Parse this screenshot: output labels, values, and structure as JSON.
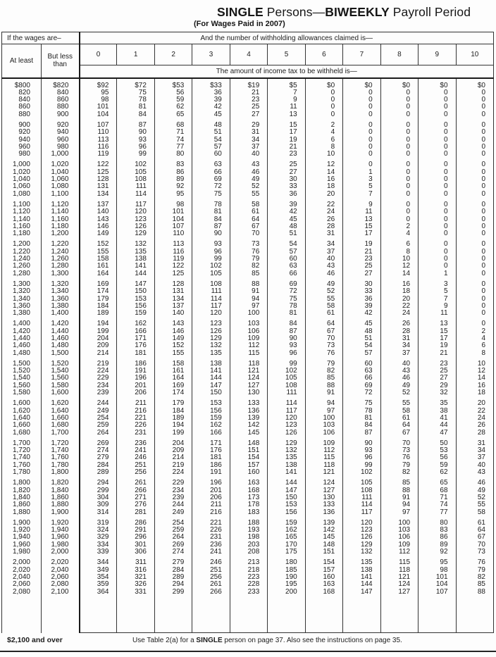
{
  "title": {
    "t1": "SINGLE",
    "t2": " Persons—",
    "t3": "BIWEEKLY",
    "t4": " Payroll Period"
  },
  "subtitle": "(For Wages Paid in 2007)",
  "table": {
    "wages_header": "If the wages are–",
    "allowances_header": "And the number of withholding allowances claimed is—",
    "col_at_least": "At least",
    "col_but_less": "But less than",
    "allowance_cols": [
      "0",
      "1",
      "2",
      "3",
      "4",
      "5",
      "6",
      "7",
      "8",
      "9",
      "10"
    ],
    "amount_header": "The amount of income tax to be withheld is—",
    "rows": [
      [
        "$800",
        "$820",
        "$92",
        "$72",
        "$53",
        "$33",
        "$19",
        "$5",
        "$0",
        "$0",
        "$0",
        "$0",
        "$0"
      ],
      [
        "820",
        "840",
        "95",
        "75",
        "56",
        "36",
        "21",
        "7",
        "0",
        "0",
        "0",
        "0",
        "0"
      ],
      [
        "840",
        "860",
        "98",
        "78",
        "59",
        "39",
        "23",
        "9",
        "0",
        "0",
        "0",
        "0",
        "0"
      ],
      [
        "860",
        "880",
        "101",
        "81",
        "62",
        "42",
        "25",
        "11",
        "0",
        "0",
        "0",
        "0",
        "0"
      ],
      [
        "880",
        "900",
        "104",
        "84",
        "65",
        "45",
        "27",
        "13",
        "0",
        "0",
        "0",
        "0",
        "0"
      ],
      [
        "900",
        "920",
        "107",
        "87",
        "68",
        "48",
        "29",
        "15",
        "2",
        "0",
        "0",
        "0",
        "0"
      ],
      [
        "920",
        "940",
        "110",
        "90",
        "71",
        "51",
        "31",
        "17",
        "4",
        "0",
        "0",
        "0",
        "0"
      ],
      [
        "940",
        "960",
        "113",
        "93",
        "74",
        "54",
        "34",
        "19",
        "6",
        "0",
        "0",
        "0",
        "0"
      ],
      [
        "960",
        "980",
        "116",
        "96",
        "77",
        "57",
        "37",
        "21",
        "8",
        "0",
        "0",
        "0",
        "0"
      ],
      [
        "980",
        "1,000",
        "119",
        "99",
        "80",
        "60",
        "40",
        "23",
        "10",
        "0",
        "0",
        "0",
        "0"
      ],
      [
        "1,000",
        "1,020",
        "122",
        "102",
        "83",
        "63",
        "43",
        "25",
        "12",
        "0",
        "0",
        "0",
        "0"
      ],
      [
        "1,020",
        "1,040",
        "125",
        "105",
        "86",
        "66",
        "46",
        "27",
        "14",
        "1",
        "0",
        "0",
        "0"
      ],
      [
        "1,040",
        "1,060",
        "128",
        "108",
        "89",
        "69",
        "49",
        "30",
        "16",
        "3",
        "0",
        "0",
        "0"
      ],
      [
        "1,060",
        "1,080",
        "131",
        "111",
        "92",
        "72",
        "52",
        "33",
        "18",
        "5",
        "0",
        "0",
        "0"
      ],
      [
        "1,080",
        "1,100",
        "134",
        "114",
        "95",
        "75",
        "55",
        "36",
        "20",
        "7",
        "0",
        "0",
        "0"
      ],
      [
        "1,100",
        "1,120",
        "137",
        "117",
        "98",
        "78",
        "58",
        "39",
        "22",
        "9",
        "0",
        "0",
        "0"
      ],
      [
        "1,120",
        "1,140",
        "140",
        "120",
        "101",
        "81",
        "61",
        "42",
        "24",
        "11",
        "0",
        "0",
        "0"
      ],
      [
        "1,140",
        "1,160",
        "143",
        "123",
        "104",
        "84",
        "64",
        "45",
        "26",
        "13",
        "0",
        "0",
        "0"
      ],
      [
        "1,160",
        "1,180",
        "146",
        "126",
        "107",
        "87",
        "67",
        "48",
        "28",
        "15",
        "2",
        "0",
        "0"
      ],
      [
        "1,180",
        "1,200",
        "149",
        "129",
        "110",
        "90",
        "70",
        "51",
        "31",
        "17",
        "4",
        "0",
        "0"
      ],
      [
        "1,200",
        "1,220",
        "152",
        "132",
        "113",
        "93",
        "73",
        "54",
        "34",
        "19",
        "6",
        "0",
        "0"
      ],
      [
        "1,220",
        "1,240",
        "155",
        "135",
        "116",
        "96",
        "76",
        "57",
        "37",
        "21",
        "8",
        "0",
        "0"
      ],
      [
        "1,240",
        "1,260",
        "158",
        "138",
        "119",
        "99",
        "79",
        "60",
        "40",
        "23",
        "10",
        "0",
        "0"
      ],
      [
        "1,260",
        "1,280",
        "161",
        "141",
        "122",
        "102",
        "82",
        "63",
        "43",
        "25",
        "12",
        "0",
        "0"
      ],
      [
        "1,280",
        "1,300",
        "164",
        "144",
        "125",
        "105",
        "85",
        "66",
        "46",
        "27",
        "14",
        "1",
        "0"
      ],
      [
        "1,300",
        "1,320",
        "169",
        "147",
        "128",
        "108",
        "88",
        "69",
        "49",
        "30",
        "16",
        "3",
        "0"
      ],
      [
        "1,320",
        "1,340",
        "174",
        "150",
        "131",
        "111",
        "91",
        "72",
        "52",
        "33",
        "18",
        "5",
        "0"
      ],
      [
        "1,340",
        "1,360",
        "179",
        "153",
        "134",
        "114",
        "94",
        "75",
        "55",
        "36",
        "20",
        "7",
        "0"
      ],
      [
        "1,360",
        "1,380",
        "184",
        "156",
        "137",
        "117",
        "97",
        "78",
        "58",
        "39",
        "22",
        "9",
        "0"
      ],
      [
        "1,380",
        "1,400",
        "189",
        "159",
        "140",
        "120",
        "100",
        "81",
        "61",
        "42",
        "24",
        "11",
        "0"
      ],
      [
        "1,400",
        "1,420",
        "194",
        "162",
        "143",
        "123",
        "103",
        "84",
        "64",
        "45",
        "26",
        "13",
        "0"
      ],
      [
        "1,420",
        "1,440",
        "199",
        "166",
        "146",
        "126",
        "106",
        "87",
        "67",
        "48",
        "28",
        "15",
        "2"
      ],
      [
        "1,440",
        "1,460",
        "204",
        "171",
        "149",
        "129",
        "109",
        "90",
        "70",
        "51",
        "31",
        "17",
        "4"
      ],
      [
        "1,460",
        "1,480",
        "209",
        "176",
        "152",
        "132",
        "112",
        "93",
        "73",
        "54",
        "34",
        "19",
        "6"
      ],
      [
        "1,480",
        "1,500",
        "214",
        "181",
        "155",
        "135",
        "115",
        "96",
        "76",
        "57",
        "37",
        "21",
        "8"
      ],
      [
        "1,500",
        "1,520",
        "219",
        "186",
        "158",
        "138",
        "118",
        "99",
        "79",
        "60",
        "40",
        "23",
        "10"
      ],
      [
        "1,520",
        "1,540",
        "224",
        "191",
        "161",
        "141",
        "121",
        "102",
        "82",
        "63",
        "43",
        "25",
        "12"
      ],
      [
        "1,540",
        "1,560",
        "229",
        "196",
        "164",
        "144",
        "124",
        "105",
        "85",
        "66",
        "46",
        "27",
        "14"
      ],
      [
        "1,560",
        "1,580",
        "234",
        "201",
        "169",
        "147",
        "127",
        "108",
        "88",
        "69",
        "49",
        "29",
        "16"
      ],
      [
        "1,580",
        "1,600",
        "239",
        "206",
        "174",
        "150",
        "130",
        "111",
        "91",
        "72",
        "52",
        "32",
        "18"
      ],
      [
        "1,600",
        "1,620",
        "244",
        "211",
        "179",
        "153",
        "133",
        "114",
        "94",
        "75",
        "55",
        "35",
        "20"
      ],
      [
        "1,620",
        "1,640",
        "249",
        "216",
        "184",
        "156",
        "136",
        "117",
        "97",
        "78",
        "58",
        "38",
        "22"
      ],
      [
        "1,640",
        "1,660",
        "254",
        "221",
        "189",
        "159",
        "139",
        "120",
        "100",
        "81",
        "61",
        "41",
        "24"
      ],
      [
        "1,660",
        "1,680",
        "259",
        "226",
        "194",
        "162",
        "142",
        "123",
        "103",
        "84",
        "64",
        "44",
        "26"
      ],
      [
        "1,680",
        "1,700",
        "264",
        "231",
        "199",
        "166",
        "145",
        "126",
        "106",
        "87",
        "67",
        "47",
        "28"
      ],
      [
        "1,700",
        "1,720",
        "269",
        "236",
        "204",
        "171",
        "148",
        "129",
        "109",
        "90",
        "70",
        "50",
        "31"
      ],
      [
        "1,720",
        "1,740",
        "274",
        "241",
        "209",
        "176",
        "151",
        "132",
        "112",
        "93",
        "73",
        "53",
        "34"
      ],
      [
        "1,740",
        "1,760",
        "279",
        "246",
        "214",
        "181",
        "154",
        "135",
        "115",
        "96",
        "76",
        "56",
        "37"
      ],
      [
        "1,760",
        "1,780",
        "284",
        "251",
        "219",
        "186",
        "157",
        "138",
        "118",
        "99",
        "79",
        "59",
        "40"
      ],
      [
        "1,780",
        "1,800",
        "289",
        "256",
        "224",
        "191",
        "160",
        "141",
        "121",
        "102",
        "82",
        "62",
        "43"
      ],
      [
        "1,800",
        "1,820",
        "294",
        "261",
        "229",
        "196",
        "163",
        "144",
        "124",
        "105",
        "85",
        "65",
        "46"
      ],
      [
        "1,820",
        "1,840",
        "299",
        "266",
        "234",
        "201",
        "168",
        "147",
        "127",
        "108",
        "88",
        "68",
        "49"
      ],
      [
        "1,840",
        "1,860",
        "304",
        "271",
        "239",
        "206",
        "173",
        "150",
        "130",
        "111",
        "91",
        "71",
        "52"
      ],
      [
        "1,860",
        "1,880",
        "309",
        "276",
        "244",
        "211",
        "178",
        "153",
        "133",
        "114",
        "94",
        "74",
        "55"
      ],
      [
        "1,880",
        "1,900",
        "314",
        "281",
        "249",
        "216",
        "183",
        "156",
        "136",
        "117",
        "97",
        "77",
        "58"
      ],
      [
        "1,900",
        "1,920",
        "319",
        "286",
        "254",
        "221",
        "188",
        "159",
        "139",
        "120",
        "100",
        "80",
        "61"
      ],
      [
        "1,920",
        "1,940",
        "324",
        "291",
        "259",
        "226",
        "193",
        "162",
        "142",
        "123",
        "103",
        "83",
        "64"
      ],
      [
        "1,940",
        "1,960",
        "329",
        "296",
        "264",
        "231",
        "198",
        "165",
        "145",
        "126",
        "106",
        "86",
        "67"
      ],
      [
        "1,960",
        "1,980",
        "334",
        "301",
        "269",
        "236",
        "203",
        "170",
        "148",
        "129",
        "109",
        "89",
        "70"
      ],
      [
        "1,980",
        "2,000",
        "339",
        "306",
        "274",
        "241",
        "208",
        "175",
        "151",
        "132",
        "112",
        "92",
        "73"
      ],
      [
        "2,000",
        "2,020",
        "344",
        "311",
        "279",
        "246",
        "213",
        "180",
        "154",
        "135",
        "115",
        "95",
        "76"
      ],
      [
        "2,020",
        "2,040",
        "349",
        "316",
        "284",
        "251",
        "218",
        "185",
        "157",
        "138",
        "118",
        "98",
        "79"
      ],
      [
        "2,040",
        "2,060",
        "354",
        "321",
        "289",
        "256",
        "223",
        "190",
        "160",
        "141",
        "121",
        "101",
        "82"
      ],
      [
        "2,060",
        "2,080",
        "359",
        "326",
        "294",
        "261",
        "228",
        "195",
        "163",
        "144",
        "124",
        "104",
        "85"
      ],
      [
        "2,080",
        "2,100",
        "364",
        "331",
        "299",
        "266",
        "233",
        "200",
        "168",
        "147",
        "127",
        "107",
        "88"
      ]
    ]
  },
  "footer": {
    "over_label": "$2,100 and over",
    "note_pre": "Use Table 2(a) for a ",
    "note_bold": "SINGLE",
    "note_post": " person on page 37. Also see the instructions on page 35."
  }
}
